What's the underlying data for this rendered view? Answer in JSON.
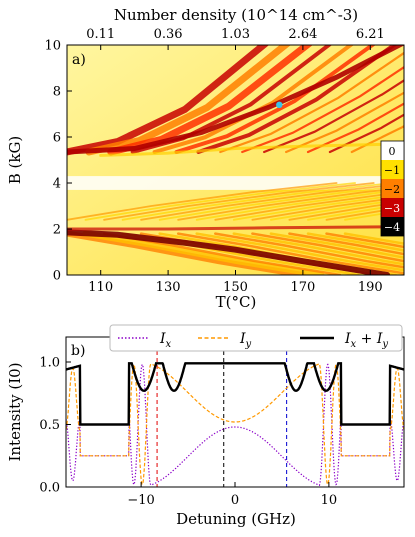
{
  "chart_data": [
    {
      "type": "heatmap",
      "panel_label": "a)",
      "xlabel": "T(°C)",
      "ylabel": "B (kG)",
      "xlim": [
        100,
        200
      ],
      "ylim": [
        0,
        10
      ],
      "x_ticks": [
        110,
        130,
        150,
        170,
        190
      ],
      "y_ticks": [
        0,
        2,
        4,
        6,
        8,
        10
      ],
      "top_axis_label": "Number density (10^14 cm^-3)",
      "top_axis_ticks": [
        {
          "T": 110,
          "label": "0.11"
        },
        {
          "T": 130,
          "label": "0.36"
        },
        {
          "T": 150,
          "label": "1.03"
        },
        {
          "T": 170,
          "label": "2.64"
        },
        {
          "T": 190,
          "label": "6.21"
        }
      ],
      "colorbar": {
        "ticks": [
          "0",
          "−1",
          "−2",
          "−3",
          "−4"
        ],
        "colors": [
          "#ffffff",
          "#ffe000",
          "#ff7f00",
          "#c80000",
          "#000000"
        ]
      },
      "marker": {
        "T": 163,
        "B": 7.4,
        "color": "#38c4e8"
      }
    },
    {
      "type": "line",
      "panel_label": "b)",
      "xlabel": "Detuning (GHz)",
      "ylabel": "Intensity (I0)",
      "xlim": [
        -18,
        18
      ],
      "ylim": [
        0,
        1.2
      ],
      "x_ticks": [
        -10,
        0,
        10
      ],
      "y_ticks": [
        "0.0",
        "0.5",
        "1.0"
      ],
      "series": [
        {
          "name": "I_x",
          "color": "#8b00c8",
          "style": "dotted"
        },
        {
          "name": "I_y",
          "color": "#ff9900",
          "style": "dashed"
        },
        {
          "name": "I_x + I_y",
          "color": "#000000",
          "style": "solid"
        }
      ],
      "vlines": [
        {
          "x": -8.3,
          "color": "#e00000"
        },
        {
          "x": -1.2,
          "color": "#000000"
        },
        {
          "x": 5.5,
          "color": "#0000d0"
        }
      ],
      "legend_position": "top",
      "legend_labels": {
        "ix": "I",
        "ix_sub": "x",
        "iy": "I",
        "iy_sub": "y",
        "sum_a": "I",
        "sum_a_sub": "x",
        "sum_plus": " + ",
        "sum_b": "I",
        "sum_b_sub": "y"
      }
    }
  ]
}
